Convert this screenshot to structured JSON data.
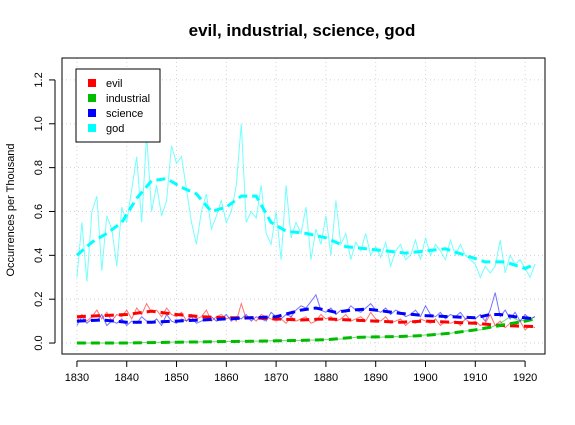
{
  "chart_data": {
    "type": "line",
    "title": "evil, industrial, science, god",
    "xlabel": "",
    "ylabel": "Occurrences per Thousand",
    "xlim": [
      1827,
      1924
    ],
    "ylim": [
      -0.05,
      1.3
    ],
    "xticks": [
      1830,
      1840,
      1850,
      1860,
      1870,
      1880,
      1890,
      1900,
      1910,
      1920
    ],
    "xtick_labels": [
      "1830",
      "1840",
      "1850",
      "1860",
      "1870",
      "1880",
      "1890",
      "1900",
      "1910",
      "1920"
    ],
    "yticks": [
      0.0,
      0.2,
      0.4,
      0.6,
      0.8,
      1.0,
      1.2
    ],
    "ytick_labels": [
      "0.0",
      "0.2",
      "0.4",
      "0.6",
      "0.8",
      "1.0",
      "1.2"
    ],
    "grid": true,
    "legend_position": "top-left",
    "series": [
      {
        "name": "evil",
        "color": "#ff0000",
        "smooth": {
          "x": [
            1830,
            1835,
            1840,
            1845,
            1850,
            1855,
            1860,
            1865,
            1870,
            1875,
            1880,
            1885,
            1890,
            1895,
            1900,
            1905,
            1910,
            1915,
            1922
          ],
          "y": [
            0.12,
            0.125,
            0.13,
            0.145,
            0.13,
            0.12,
            0.115,
            0.115,
            0.11,
            0.105,
            0.11,
            0.105,
            0.1,
            0.095,
            0.1,
            0.095,
            0.09,
            0.08,
            0.075
          ]
        },
        "raw": {
          "x": [
            1830,
            1831,
            1832,
            1833,
            1834,
            1835,
            1836,
            1837,
            1838,
            1839,
            1840,
            1841,
            1842,
            1843,
            1844,
            1845,
            1846,
            1847,
            1848,
            1849,
            1850,
            1851,
            1852,
            1853,
            1854,
            1855,
            1856,
            1857,
            1858,
            1859,
            1860,
            1861,
            1862,
            1863,
            1864,
            1865,
            1866,
            1867,
            1868,
            1869,
            1870,
            1871,
            1872,
            1873,
            1874,
            1875,
            1876,
            1877,
            1878,
            1879,
            1880,
            1881,
            1882,
            1883,
            1884,
            1885,
            1886,
            1887,
            1888,
            1889,
            1890,
            1891,
            1892,
            1893,
            1894,
            1895,
            1896,
            1897,
            1898,
            1899,
            1900,
            1901,
            1902,
            1903,
            1904,
            1905,
            1906,
            1907,
            1908,
            1909,
            1910,
            1911,
            1912,
            1913,
            1914,
            1915,
            1916,
            1917,
            1918,
            1919,
            1920,
            1921,
            1922
          ],
          "y": [
            0.1,
            0.13,
            0.1,
            0.12,
            0.15,
            0.11,
            0.14,
            0.1,
            0.13,
            0.12,
            0.15,
            0.11,
            0.16,
            0.13,
            0.18,
            0.14,
            0.15,
            0.12,
            0.16,
            0.13,
            0.12,
            0.14,
            0.1,
            0.13,
            0.11,
            0.12,
            0.15,
            0.1,
            0.12,
            0.13,
            0.11,
            0.12,
            0.1,
            0.18,
            0.11,
            0.12,
            0.1,
            0.13,
            0.12,
            0.11,
            0.1,
            0.11,
            0.09,
            0.12,
            0.1,
            0.11,
            0.12,
            0.09,
            0.1,
            0.13,
            0.11,
            0.12,
            0.1,
            0.11,
            0.13,
            0.1,
            0.11,
            0.12,
            0.1,
            0.14,
            0.11,
            0.1,
            0.12,
            0.09,
            0.1,
            0.11,
            0.08,
            0.1,
            0.09,
            0.11,
            0.1,
            0.09,
            0.11,
            0.08,
            0.1,
            0.09,
            0.1,
            0.08,
            0.11,
            0.09,
            0.1,
            0.08,
            0.09,
            0.13,
            0.08,
            0.1,
            0.07,
            0.09,
            0.08,
            0.1,
            0.06,
            0.08,
            0.07
          ]
        }
      },
      {
        "name": "industrial",
        "color": "#00bb00",
        "smooth": {
          "x": [
            1830,
            1835,
            1840,
            1845,
            1850,
            1855,
            1860,
            1865,
            1870,
            1875,
            1880,
            1885,
            1890,
            1895,
            1900,
            1905,
            1910,
            1915,
            1920,
            1922
          ],
          "y": [
            0.0,
            0.0,
            0.0,
            0.002,
            0.004,
            0.005,
            0.007,
            0.008,
            0.01,
            0.012,
            0.015,
            0.025,
            0.028,
            0.03,
            0.035,
            0.045,
            0.06,
            0.08,
            0.1,
            0.11
          ]
        },
        "raw": {
          "x": [
            1830,
            1833,
            1836,
            1839,
            1842,
            1845,
            1848,
            1851,
            1854,
            1857,
            1860,
            1863,
            1866,
            1869,
            1872,
            1875,
            1878,
            1881,
            1884,
            1887,
            1890,
            1893,
            1896,
            1899,
            1902,
            1905,
            1908,
            1911,
            1913,
            1915,
            1917,
            1919,
            1921,
            1922
          ],
          "y": [
            0.0,
            0.0,
            0.0,
            0.0,
            0.002,
            0.003,
            0.004,
            0.005,
            0.005,
            0.006,
            0.007,
            0.008,
            0.009,
            0.01,
            0.011,
            0.012,
            0.014,
            0.016,
            0.02,
            0.03,
            0.025,
            0.03,
            0.028,
            0.035,
            0.04,
            0.045,
            0.055,
            0.06,
            0.07,
            0.09,
            0.12,
            0.1,
            0.11,
            0.12
          ]
        }
      },
      {
        "name": "science",
        "color": "#0000ff",
        "smooth": {
          "x": [
            1830,
            1835,
            1840,
            1845,
            1850,
            1855,
            1860,
            1865,
            1870,
            1875,
            1878,
            1882,
            1885,
            1888,
            1890,
            1895,
            1900,
            1905,
            1910,
            1913,
            1915,
            1918,
            1922
          ],
          "y": [
            0.1,
            0.105,
            0.095,
            0.095,
            0.1,
            0.105,
            0.11,
            0.115,
            0.12,
            0.15,
            0.16,
            0.14,
            0.15,
            0.155,
            0.15,
            0.135,
            0.125,
            0.12,
            0.115,
            0.13,
            0.13,
            0.12,
            0.11
          ]
        },
        "raw": {
          "x": [
            1830,
            1831,
            1832,
            1833,
            1834,
            1835,
            1836,
            1837,
            1838,
            1839,
            1840,
            1841,
            1842,
            1843,
            1844,
            1845,
            1846,
            1847,
            1848,
            1849,
            1850,
            1851,
            1852,
            1853,
            1854,
            1855,
            1856,
            1857,
            1858,
            1859,
            1860,
            1861,
            1862,
            1863,
            1864,
            1865,
            1866,
            1867,
            1868,
            1869,
            1870,
            1871,
            1872,
            1873,
            1874,
            1875,
            1876,
            1877,
            1878,
            1879,
            1880,
            1881,
            1882,
            1883,
            1884,
            1885,
            1886,
            1887,
            1888,
            1889,
            1890,
            1891,
            1892,
            1893,
            1894,
            1895,
            1896,
            1897,
            1898,
            1899,
            1900,
            1901,
            1902,
            1903,
            1904,
            1905,
            1906,
            1907,
            1908,
            1909,
            1910,
            1911,
            1912,
            1913,
            1914,
            1915,
            1916,
            1917,
            1918,
            1919,
            1920,
            1921,
            1922
          ],
          "y": [
            0.08,
            0.12,
            0.09,
            0.11,
            0.1,
            0.13,
            0.08,
            0.1,
            0.09,
            0.11,
            0.08,
            0.1,
            0.09,
            0.12,
            0.1,
            0.09,
            0.11,
            0.08,
            0.13,
            0.1,
            0.09,
            0.11,
            0.1,
            0.12,
            0.09,
            0.1,
            0.11,
            0.12,
            0.1,
            0.11,
            0.13,
            0.1,
            0.12,
            0.11,
            0.13,
            0.1,
            0.12,
            0.11,
            0.1,
            0.14,
            0.12,
            0.11,
            0.13,
            0.12,
            0.15,
            0.17,
            0.16,
            0.19,
            0.22,
            0.15,
            0.14,
            0.16,
            0.13,
            0.15,
            0.14,
            0.17,
            0.15,
            0.14,
            0.16,
            0.18,
            0.15,
            0.14,
            0.16,
            0.13,
            0.15,
            0.14,
            0.12,
            0.13,
            0.15,
            0.12,
            0.17,
            0.13,
            0.12,
            0.14,
            0.11,
            0.13,
            0.12,
            0.14,
            0.11,
            0.12,
            0.11,
            0.13,
            0.1,
            0.15,
            0.23,
            0.12,
            0.15,
            0.11,
            0.14,
            0.1,
            0.13,
            0.11,
            0.12
          ]
        }
      },
      {
        "name": "god",
        "color": "#00ffff",
        "smooth": {
          "x": [
            1830,
            1833,
            1836,
            1839,
            1842,
            1845,
            1848,
            1851,
            1854,
            1857,
            1860,
            1863,
            1866,
            1869,
            1872,
            1876,
            1880,
            1884,
            1888,
            1892,
            1896,
            1900,
            1904,
            1908,
            1912,
            1916,
            1920,
            1922
          ],
          "y": [
            0.4,
            0.46,
            0.5,
            0.55,
            0.66,
            0.74,
            0.75,
            0.71,
            0.68,
            0.6,
            0.62,
            0.67,
            0.67,
            0.55,
            0.51,
            0.5,
            0.48,
            0.44,
            0.43,
            0.42,
            0.41,
            0.42,
            0.43,
            0.4,
            0.37,
            0.37,
            0.34,
            0.36
          ]
        },
        "raw": {
          "x": [
            1830,
            1831,
            1832,
            1833,
            1834,
            1835,
            1836,
            1837,
            1838,
            1839,
            1840,
            1841,
            1842,
            1843,
            1844,
            1845,
            1846,
            1847,
            1848,
            1849,
            1850,
            1851,
            1852,
            1853,
            1854,
            1855,
            1856,
            1857,
            1858,
            1859,
            1860,
            1861,
            1862,
            1863,
            1864,
            1865,
            1866,
            1867,
            1868,
            1869,
            1870,
            1871,
            1872,
            1873,
            1874,
            1875,
            1876,
            1877,
            1878,
            1879,
            1880,
            1881,
            1882,
            1883,
            1884,
            1885,
            1886,
            1887,
            1888,
            1889,
            1890,
            1891,
            1892,
            1893,
            1894,
            1895,
            1896,
            1897,
            1898,
            1899,
            1900,
            1901,
            1902,
            1903,
            1904,
            1905,
            1906,
            1907,
            1908,
            1909,
            1910,
            1911,
            1912,
            1913,
            1914,
            1915,
            1916,
            1917,
            1918,
            1919,
            1920,
            1921,
            1922
          ],
          "y": [
            0.3,
            0.55,
            0.28,
            0.6,
            0.67,
            0.33,
            0.58,
            0.52,
            0.35,
            0.62,
            0.55,
            0.7,
            0.85,
            0.55,
            0.95,
            0.6,
            0.72,
            0.58,
            0.65,
            0.9,
            0.82,
            0.85,
            0.7,
            0.55,
            0.45,
            0.6,
            0.68,
            0.52,
            0.58,
            0.65,
            0.55,
            0.6,
            0.72,
            1.0,
            0.55,
            0.6,
            0.57,
            0.72,
            0.5,
            0.45,
            0.6,
            0.38,
            0.72,
            0.48,
            0.55,
            0.5,
            0.62,
            0.38,
            0.52,
            0.45,
            0.58,
            0.4,
            0.65,
            0.45,
            0.5,
            0.38,
            0.46,
            0.42,
            0.5,
            0.4,
            0.44,
            0.39,
            0.46,
            0.35,
            0.42,
            0.45,
            0.38,
            0.4,
            0.47,
            0.38,
            0.48,
            0.4,
            0.45,
            0.42,
            0.38,
            0.47,
            0.4,
            0.45,
            0.4,
            0.38,
            0.36,
            0.3,
            0.35,
            0.32,
            0.35,
            0.47,
            0.32,
            0.4,
            0.36,
            0.38,
            0.34,
            0.3,
            0.36
          ]
        }
      }
    ]
  }
}
